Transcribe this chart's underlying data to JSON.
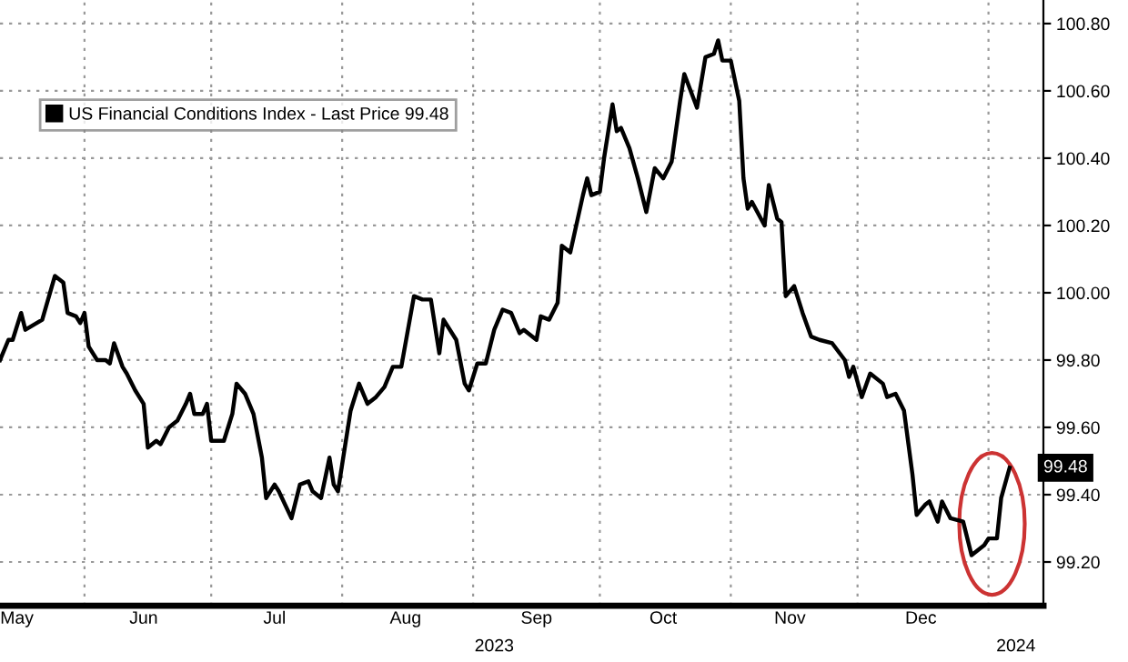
{
  "chart_data": {
    "type": "line",
    "x": [
      "2023-05-12",
      "2023-05-14",
      "2023-05-15",
      "2023-05-17",
      "2023-05-18",
      "2023-05-22",
      "2023-05-25",
      "2023-05-27",
      "2023-05-28",
      "2023-05-30",
      "2023-05-31",
      "2023-06-01",
      "2023-06-02",
      "2023-06-04",
      "2023-06-06",
      "2023-06-07",
      "2023-06-08",
      "2023-06-10",
      "2023-06-11",
      "2023-06-13",
      "2023-06-15",
      "2023-06-16",
      "2023-06-18",
      "2023-06-19",
      "2023-06-21",
      "2023-06-23",
      "2023-06-25",
      "2023-06-26",
      "2023-06-27",
      "2023-06-29",
      "2023-06-30",
      "2023-07-01",
      "2023-07-04",
      "2023-07-06",
      "2023-07-07",
      "2023-07-09",
      "2023-07-11",
      "2023-07-13",
      "2023-07-14",
      "2023-07-16",
      "2023-07-17",
      "2023-07-20",
      "2023-07-22",
      "2023-07-24",
      "2023-07-25",
      "2023-07-27",
      "2023-07-29",
      "2023-07-30",
      "2023-07-31",
      "2023-08-03",
      "2023-08-05",
      "2023-08-07",
      "2023-08-09",
      "2023-08-11",
      "2023-08-13",
      "2023-08-15",
      "2023-08-18",
      "2023-08-20",
      "2023-08-22",
      "2023-08-24",
      "2023-08-25",
      "2023-08-28",
      "2023-08-30",
      "2023-08-31",
      "2023-09-02",
      "2023-09-04",
      "2023-09-06",
      "2023-09-08",
      "2023-09-10",
      "2023-09-12",
      "2023-09-13",
      "2023-09-16",
      "2023-09-17",
      "2023-09-19",
      "2023-09-21",
      "2023-09-22",
      "2023-09-24",
      "2023-09-27",
      "2023-09-28",
      "2023-09-29",
      "2023-10-01",
      "2023-10-02",
      "2023-10-04",
      "2023-10-05",
      "2023-10-06",
      "2023-10-08",
      "2023-10-10",
      "2023-10-12",
      "2023-10-14",
      "2023-10-16",
      "2023-10-18",
      "2023-10-20",
      "2023-10-21",
      "2023-10-24",
      "2023-10-26",
      "2023-10-28",
      "2023-10-29",
      "2023-10-30",
      "2023-11-01",
      "2023-11-03",
      "2023-11-04",
      "2023-11-05",
      "2023-11-06",
      "2023-11-09",
      "2023-11-10",
      "2023-11-12",
      "2023-11-13",
      "2023-11-14",
      "2023-11-16",
      "2023-11-18",
      "2023-11-20",
      "2023-11-22",
      "2023-11-25",
      "2023-11-28",
      "2023-11-29",
      "2023-11-30",
      "2023-12-02",
      "2023-12-04",
      "2023-12-07",
      "2023-12-08",
      "2023-12-10",
      "2023-12-12",
      "2023-12-14",
      "2023-12-15",
      "2023-12-17",
      "2023-12-18",
      "2023-12-20",
      "2023-12-21",
      "2023-12-23",
      "2023-12-26",
      "2023-12-28",
      "2023-12-31",
      "2024-01-01",
      "2024-01-03",
      "2024-01-04",
      "2024-01-06"
    ],
    "series": [
      {
        "name": "US Financial Conditions Index - Last Price 99.48",
        "color": "#000000",
        "values": [
          99.8,
          99.86,
          99.86,
          99.94,
          99.89,
          99.92,
          100.05,
          100.03,
          99.94,
          99.93,
          99.91,
          99.94,
          99.84,
          99.8,
          99.8,
          99.79,
          99.85,
          99.78,
          99.76,
          99.71,
          99.67,
          99.54,
          99.56,
          99.55,
          99.6,
          99.62,
          99.67,
          99.7,
          99.64,
          99.64,
          99.67,
          99.56,
          99.56,
          99.64,
          99.73,
          99.7,
          99.64,
          99.51,
          99.39,
          99.43,
          99.41,
          99.33,
          99.43,
          99.44,
          99.41,
          99.39,
          99.51,
          99.43,
          99.41,
          99.65,
          99.73,
          99.67,
          99.69,
          99.72,
          99.78,
          99.78,
          99.99,
          99.98,
          99.98,
          99.82,
          99.92,
          99.86,
          99.73,
          99.71,
          99.79,
          99.79,
          99.89,
          99.95,
          99.94,
          99.88,
          99.89,
          99.86,
          99.93,
          99.92,
          99.97,
          100.14,
          100.12,
          100.29,
          100.34,
          100.29,
          100.3,
          100.4,
          100.56,
          100.48,
          100.49,
          100.43,
          100.34,
          100.24,
          100.37,
          100.34,
          100.39,
          100.57,
          100.65,
          100.55,
          100.7,
          100.71,
          100.75,
          100.69,
          100.69,
          100.57,
          100.34,
          100.25,
          100.27,
          100.2,
          100.32,
          100.22,
          100.21,
          99.99,
          100.02,
          99.94,
          99.87,
          99.86,
          99.85,
          99.8,
          99.75,
          99.78,
          99.69,
          99.76,
          99.73,
          99.69,
          99.7,
          99.65,
          99.46,
          99.34,
          99.37,
          99.38,
          99.32,
          99.38,
          99.33,
          99.32,
          99.22,
          99.25,
          99.27,
          99.27,
          99.39,
          99.48
        ]
      }
    ],
    "xlim": [
      "2023-05-12",
      "2024-01-14"
    ],
    "xticks": [
      {
        "value": "2023-05-16",
        "label": "May"
      },
      {
        "value": "2023-06-01",
        "label": null
      },
      {
        "value": "2023-06-15",
        "label": "Jun"
      },
      {
        "value": "2023-07-01",
        "label": null
      },
      {
        "value": "2023-07-16",
        "label": "Jul"
      },
      {
        "value": "2023-08-01",
        "label": null
      },
      {
        "value": "2023-08-16",
        "label": "Aug"
      },
      {
        "value": "2023-09-01",
        "label": null
      },
      {
        "value": "2023-09-16",
        "label": "Sep"
      },
      {
        "value": "2023-10-01",
        "label": null
      },
      {
        "value": "2023-10-16",
        "label": "Oct"
      },
      {
        "value": "2023-11-01",
        "label": null
      },
      {
        "value": "2023-11-15",
        "label": "Nov"
      },
      {
        "value": "2023-12-01",
        "label": null
      },
      {
        "value": "2023-12-16",
        "label": "Dec"
      },
      {
        "value": "2024-01-01",
        "label": null
      }
    ],
    "ylim": [
      99.07,
      100.87
    ],
    "yticks": [
      {
        "value": 99.2,
        "label": "99.20"
      },
      {
        "value": 99.4,
        "label": "99.40"
      },
      {
        "value": 99.6,
        "label": "99.60"
      },
      {
        "value": 99.8,
        "label": "99.80"
      },
      {
        "value": 100.0,
        "label": "100.00"
      },
      {
        "value": 100.2,
        "label": "100.20"
      },
      {
        "value": 100.4,
        "label": "100.40"
      },
      {
        "value": 100.6,
        "label": "100.60"
      },
      {
        "value": 100.8,
        "label": "100.80"
      }
    ],
    "annotations": [
      "2023",
      "2024",
      {
        "text": "99.48",
        "x": "2024-01-06",
        "y": 99.48
      }
    ],
    "grid": true,
    "legend": "top left",
    "line_style": "solid",
    "marker": "none"
  }
}
